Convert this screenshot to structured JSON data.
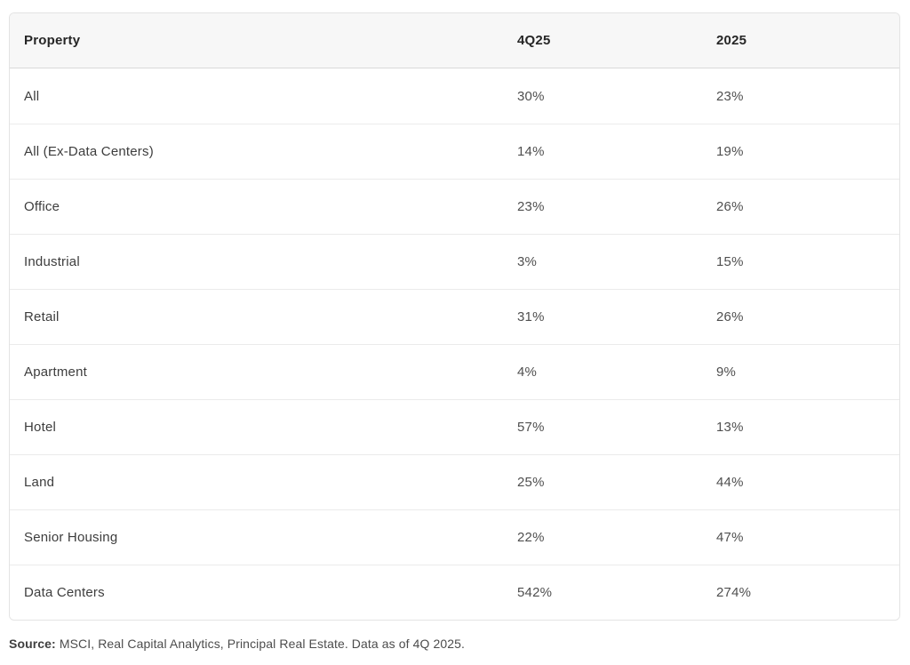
{
  "chart_data": {
    "type": "table",
    "columns": [
      "Property",
      "4Q25",
      "2025"
    ],
    "rows": [
      [
        "All",
        "30%",
        "23%"
      ],
      [
        "All (Ex-Data Centers)",
        "14%",
        "19%"
      ],
      [
        "Office",
        "23%",
        "26%"
      ],
      [
        "Industrial",
        "3%",
        "15%"
      ],
      [
        "Retail",
        "31%",
        "26%"
      ],
      [
        "Apartment",
        "4%",
        "9%"
      ],
      [
        "Hotel",
        "57%",
        "13%"
      ],
      [
        "Land",
        "25%",
        "44%"
      ],
      [
        "Senior Housing",
        "22%",
        "47%"
      ],
      [
        "Data Centers",
        "542%",
        "274%"
      ]
    ]
  },
  "footer": {
    "source_label": "Source:",
    "source_text": " MSCI, Real Capital Analytics, Principal Real Estate. Data as of 4Q 2025."
  },
  "colors": {
    "header_background": "#f7f7f7",
    "table_border": "#e3e3e3",
    "header_divider": "#d9d9d9",
    "row_divider": "#ebebeb",
    "header_text": "#262626",
    "body_text": "#3d3d3d",
    "footer_text": "#4c4c4c"
  }
}
